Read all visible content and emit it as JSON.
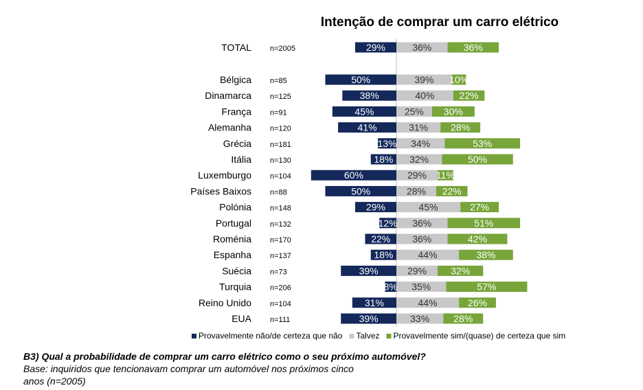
{
  "chart_data": {
    "type": "bar",
    "subtype": "diverging-stacked-horizontal",
    "title": "Intenção de comprar um carro elétrico",
    "categories": [
      "TOTAL",
      "Bélgica",
      "Dinamarca",
      "França",
      "Alemanha",
      "Grécia",
      "Itália",
      "Luxemburgo",
      "Países Baixos",
      "Polónia",
      "Portugal",
      "Roménia",
      "Espanha",
      "Suécia",
      "Turquia",
      "Reino Unido",
      "EUA"
    ],
    "sample_sizes": [
      "n=2005",
      "n=85",
      "n=125",
      "n=91",
      "n=120",
      "n=181",
      "n=130",
      "n=104",
      "n=88",
      "n=148",
      "n=132",
      "n=170",
      "n=137",
      "n=73",
      "n=206",
      "n=104",
      "n=111"
    ],
    "series": [
      {
        "name": "Provavelmente não/de certeza que não",
        "color": "#14285a",
        "values": [
          29,
          50,
          38,
          45,
          41,
          13,
          18,
          60,
          50,
          29,
          12,
          22,
          18,
          39,
          8,
          31,
          39
        ]
      },
      {
        "name": "Talvez",
        "color": "#c8c8c8",
        "values": [
          36,
          39,
          40,
          25,
          31,
          34,
          32,
          29,
          28,
          45,
          36,
          36,
          44,
          29,
          35,
          44,
          33
        ]
      },
      {
        "name": "Provavelmente sim/(quase) de certeza que sim",
        "color": "#77a53a",
        "values": [
          36,
          10,
          22,
          30,
          28,
          53,
          50,
          11,
          22,
          27,
          51,
          42,
          38,
          32,
          57,
          26,
          28
        ]
      }
    ],
    "legend_position": "bottom",
    "grid": false
  },
  "footer": {
    "question": "B3) Qual a probabilidade de comprar um carro elétrico como o seu próximo automóvel?",
    "base_line1": "Base: inquiridos que tencionavam comprar um automóvel nos próximos cinco",
    "base_line2": "anos (n=2005)"
  }
}
